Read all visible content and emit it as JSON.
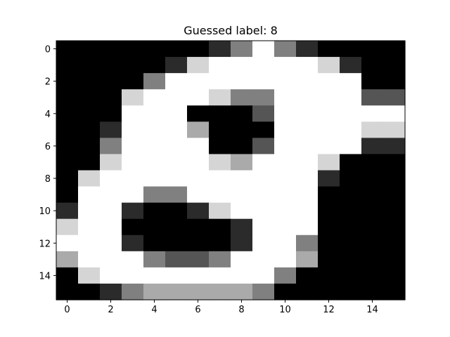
{
  "chart_data": {
    "type": "heatmap",
    "title": "Guessed label: 8",
    "colormap": "gray",
    "value_range": [
      0,
      6
    ],
    "x_ticks": [
      0,
      2,
      4,
      6,
      8,
      10,
      12,
      14
    ],
    "y_ticks": [
      0,
      2,
      4,
      6,
      8,
      10,
      12,
      14
    ],
    "x_tick_labels": [
      "0",
      "2",
      "4",
      "6",
      "8",
      "10",
      "12",
      "14"
    ],
    "y_tick_labels": [
      "0",
      "2",
      "4",
      "6",
      "8",
      "10",
      "12",
      "14"
    ],
    "grid": false,
    "matrix": [
      [
        0,
        0,
        0,
        0,
        0,
        0,
        0,
        1,
        3,
        6,
        3,
        1,
        0,
        0,
        0,
        0
      ],
      [
        0,
        0,
        0,
        0,
        0,
        1,
        5,
        6,
        6,
        6,
        6,
        6,
        5,
        1,
        0,
        0
      ],
      [
        0,
        0,
        0,
        0,
        3,
        6,
        6,
        6,
        6,
        6,
        6,
        6,
        6,
        6,
        0,
        0
      ],
      [
        0,
        0,
        0,
        5,
        6,
        6,
        6,
        5,
        3,
        3,
        6,
        6,
        6,
        6,
        2,
        2
      ],
      [
        0,
        0,
        0,
        6,
        6,
        6,
        0,
        0,
        0,
        2,
        6,
        6,
        6,
        6,
        6,
        6
      ],
      [
        0,
        0,
        1,
        6,
        6,
        6,
        4,
        0,
        0,
        0,
        6,
        6,
        6,
        6,
        5,
        5
      ],
      [
        0,
        0,
        3,
        6,
        6,
        6,
        6,
        0,
        0,
        2,
        6,
        6,
        6,
        6,
        1,
        1
      ],
      [
        0,
        0,
        5,
        6,
        6,
        6,
        6,
        5,
        4,
        6,
        6,
        6,
        5,
        0,
        0,
        0
      ],
      [
        0,
        5,
        6,
        6,
        6,
        6,
        6,
        6,
        6,
        6,
        6,
        6,
        1,
        0,
        0,
        0
      ],
      [
        0,
        6,
        6,
        6,
        3,
        3,
        6,
        6,
        6,
        6,
        6,
        6,
        0,
        0,
        0,
        0
      ],
      [
        1,
        6,
        6,
        1,
        0,
        0,
        1,
        5,
        6,
        6,
        6,
        6,
        0,
        0,
        0,
        0
      ],
      [
        5,
        6,
        6,
        0,
        0,
        0,
        0,
        0,
        1,
        6,
        6,
        6,
        0,
        0,
        0,
        0
      ],
      [
        6,
        6,
        6,
        1,
        0,
        0,
        0,
        0,
        1,
        6,
        6,
        3,
        0,
        0,
        0,
        0
      ],
      [
        4,
        6,
        6,
        6,
        3,
        2,
        2,
        3,
        6,
        6,
        6,
        4,
        0,
        0,
        0,
        0
      ],
      [
        0,
        5,
        6,
        6,
        6,
        6,
        6,
        6,
        6,
        6,
        3,
        0,
        0,
        0,
        0,
        0
      ],
      [
        0,
        0,
        1,
        3,
        4,
        4,
        4,
        4,
        4,
        3,
        0,
        0,
        0,
        0,
        0,
        0
      ]
    ]
  }
}
